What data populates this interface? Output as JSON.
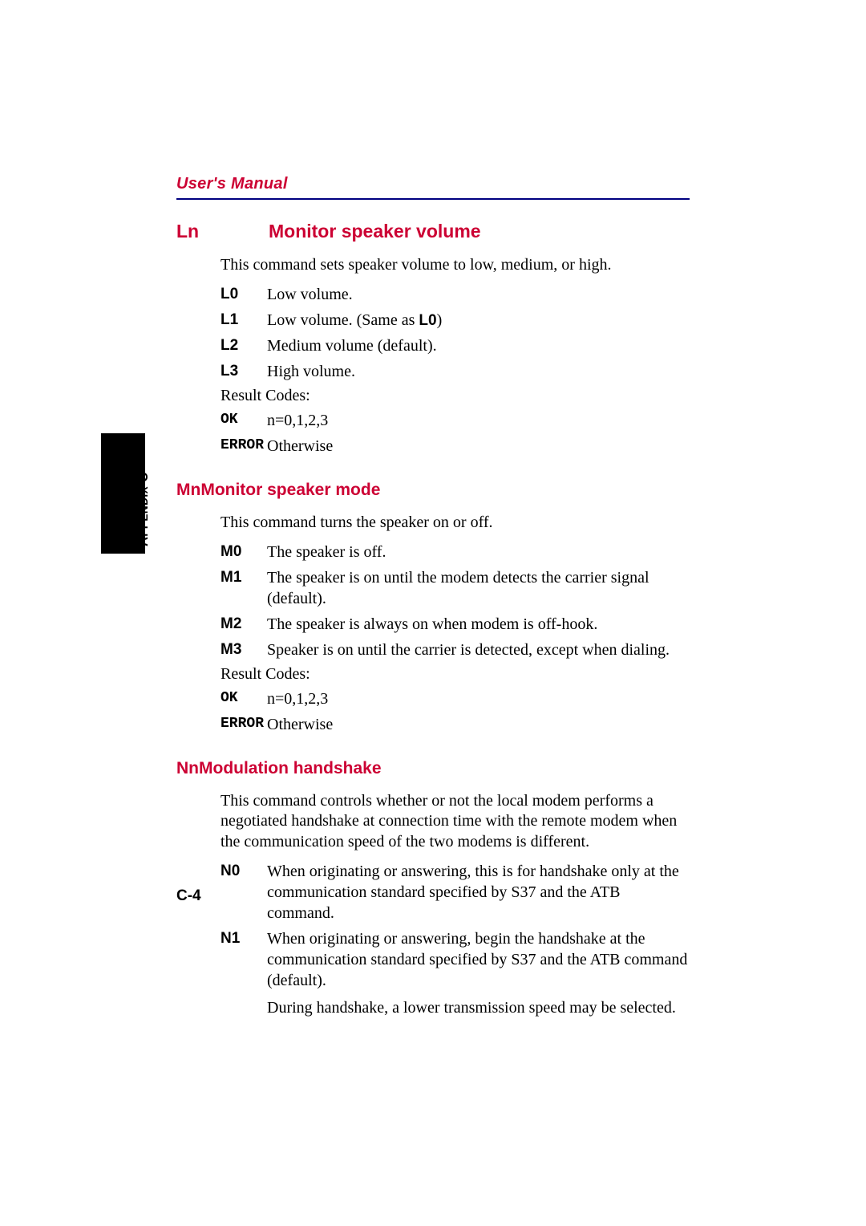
{
  "header": {
    "title": "User's Manual"
  },
  "side_tab": {
    "label_html": "A<span class='sc'>PPENDIX</span> C"
  },
  "page_number": "C-4",
  "section1": {
    "cmd": "Ln",
    "name": "Monitor speaker volume",
    "intro": "This command sets speaker volume to low, medium, or high.",
    "items": [
      {
        "term": "L0",
        "desc": "Low volume."
      },
      {
        "term": "L1",
        "desc_pre": "Low volume. (Same as ",
        "desc_bold": "L0",
        "desc_post": ")"
      },
      {
        "term": "L2",
        "desc": "Medium volume (default)."
      },
      {
        "term": "L3",
        "desc": "High volume."
      }
    ],
    "result_label": "Result Codes:",
    "results": [
      {
        "term": "OK",
        "desc": "n=0,1,2,3"
      },
      {
        "term": "ERROR",
        "desc": "Otherwise"
      }
    ]
  },
  "section2": {
    "heading": "MnMonitor speaker mode",
    "intro": "This command turns the speaker on or off.",
    "items": [
      {
        "term": "M0",
        "desc": "The speaker is off."
      },
      {
        "term": "M1",
        "desc": "The speaker is on until the modem detects the carrier signal (default)."
      },
      {
        "term": "M2",
        "desc": "The speaker is always on when modem is off-hook."
      },
      {
        "term": "M3",
        "desc": "Speaker is on until the carrier is detected, except when dialing."
      }
    ],
    "result_label": "Result Codes:",
    "results": [
      {
        "term": "OK",
        "desc": "n=0,1,2,3"
      },
      {
        "term": "ERROR",
        "desc": "Otherwise"
      }
    ]
  },
  "section3": {
    "heading": "NnModulation handshake",
    "intro": "This command controls whether or not the local modem performs a negotiated handshake at connection time with the remote modem when the communication speed of the two modems is different.",
    "items": [
      {
        "term": "N0",
        "desc": "When originating or answering, this is for handshake only at the communication standard specified by S37 and the ATB command."
      },
      {
        "term": "N1",
        "desc": "When originating or answering, begin the handshake at the communication standard specified by S37 and the ATB command (default)."
      }
    ],
    "extra": "During handshake, a lower transmission speed may be selected."
  },
  "colors": {
    "accent_red": "#cc0033",
    "rule_blue": "#000080",
    "text": "#000000",
    "bg": "#ffffff"
  },
  "fonts": {
    "body": "Times New Roman",
    "heading": "Arial",
    "mono": "Courier New"
  }
}
